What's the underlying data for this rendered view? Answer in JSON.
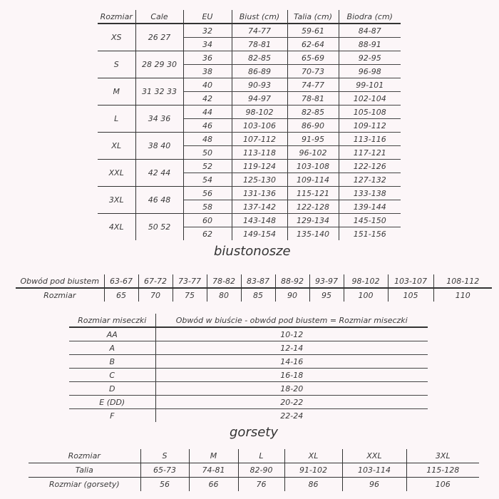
{
  "main_table": {
    "headers": [
      "Rozmiar",
      "Cale",
      "EU",
      "Biust (cm)",
      "Talia (cm)",
      "Biodra (cm)"
    ],
    "groups": [
      {
        "size": "XS",
        "cale": "26 27",
        "rows": [
          [
            "32",
            "74-77",
            "59-61",
            "84-87"
          ],
          [
            "34",
            "78-81",
            "62-64",
            "88-91"
          ]
        ]
      },
      {
        "size": "S",
        "cale": "28 29 30",
        "rows": [
          [
            "36",
            "82-85",
            "65-69",
            "92-95"
          ],
          [
            "38",
            "86-89",
            "70-73",
            "96-98"
          ]
        ]
      },
      {
        "size": "M",
        "cale": "31 32 33",
        "rows": [
          [
            "40",
            "90-93",
            "74-77",
            "99-101"
          ],
          [
            "42",
            "94-97",
            "78-81",
            "102-104"
          ]
        ]
      },
      {
        "size": "L",
        "cale": "34 36",
        "rows": [
          [
            "44",
            "98-102",
            "82-85",
            "105-108"
          ],
          [
            "46",
            "103-106",
            "86-90",
            "109-112"
          ]
        ]
      },
      {
        "size": "XL",
        "cale": "38 40",
        "rows": [
          [
            "48",
            "107-112",
            "91-95",
            "113-116"
          ],
          [
            "50",
            "113-118",
            "96-102",
            "117-121"
          ]
        ]
      },
      {
        "size": "XXL",
        "cale": "42 44",
        "rows": [
          [
            "52",
            "119-124",
            "103-108",
            "122-126"
          ],
          [
            "54",
            "125-130",
            "109-114",
            "127-132"
          ]
        ]
      },
      {
        "size": "3XL",
        "cale": "46 48",
        "rows": [
          [
            "56",
            "131-136",
            "115-121",
            "133-138"
          ],
          [
            "58",
            "137-142",
            "122-128",
            "139-144"
          ]
        ]
      },
      {
        "size": "4XL",
        "cale": "50 52",
        "rows": [
          [
            "60",
            "143-148",
            "129-134",
            "145-150"
          ],
          [
            "62",
            "149-154",
            "135-140",
            "151-156"
          ]
        ]
      }
    ]
  },
  "bra_title": "biustonosze",
  "band_table": {
    "row1_label": "Obwód pod biustem",
    "row1": [
      "63-67",
      "67-72",
      "73-77",
      "78-82",
      "83-87",
      "88-92",
      "93-97",
      "98-102",
      "103-107",
      "108-112"
    ],
    "row2_label": "Rozmiar",
    "row2": [
      "65",
      "70",
      "75",
      "80",
      "85",
      "90",
      "95",
      "100",
      "105",
      "110"
    ]
  },
  "cup_table": {
    "headers": [
      "Rozmiar miseczki",
      "Obwód w biuście - obwód pod biustem = Rozmiar miseczki"
    ],
    "rows": [
      [
        "AA",
        "10-12"
      ],
      [
        "A",
        "12-14"
      ],
      [
        "B",
        "14-16"
      ],
      [
        "C",
        "16-18"
      ],
      [
        "D",
        "18-20"
      ],
      [
        "E (DD)",
        "20-22"
      ],
      [
        "F",
        "22-24"
      ]
    ]
  },
  "corset_title": "gorsety",
  "corset_table": {
    "rows": [
      [
        "Rozmiar",
        "S",
        "M",
        "L",
        "XL",
        "XXL",
        "3XL"
      ],
      [
        "Talia",
        "65-73",
        "74-81",
        "82-90",
        "91-102",
        "103-114",
        "115-128"
      ],
      [
        "Rozmiar (gorsety)",
        "56",
        "66",
        "76",
        "86",
        "96",
        "106"
      ]
    ]
  }
}
